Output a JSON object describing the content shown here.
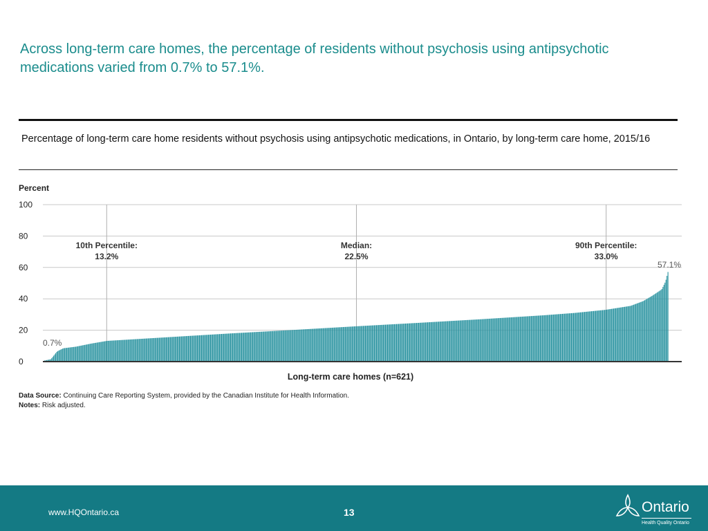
{
  "slide": {
    "title": "Across long-term care homes, the percentage of residents without psychosis using antipsychotic medications varied from 0.7% to 57.1%.",
    "chart_subtitle": "Percentage of long-term care home residents without psychosis using antipsychotic medications, in Ontario, by long-term care home, 2015/16"
  },
  "chart_data": {
    "type": "bar",
    "ylabel": "Percent",
    "xlabel": "Long-term care homes (n=621)",
    "ylim": [
      0,
      100
    ],
    "yticks": [
      0,
      20,
      40,
      60,
      80,
      100
    ],
    "grid": true,
    "n_homes": 621,
    "min_value": 0.7,
    "max_value": 57.1,
    "bar_color": "#2a93a0",
    "reference_lines": [
      {
        "label": "10th Percentile:",
        "value_label": "13.2%",
        "value": 13.2,
        "percentile": 10
      },
      {
        "label": "Median:",
        "value_label": "22.5%",
        "value": 22.5,
        "percentile": 50
      },
      {
        "label": "90th Percentile:",
        "value_label": "33.0%",
        "value": 33.0,
        "percentile": 90
      }
    ],
    "annotations": {
      "min_label": "0.7%",
      "max_label": "57.1%"
    },
    "distribution_points": [
      [
        0,
        0.7
      ],
      [
        1,
        1.5
      ],
      [
        1.5,
        4
      ],
      [
        2,
        6.5
      ],
      [
        3,
        8.5
      ],
      [
        5,
        9.5
      ],
      [
        7.5,
        11.5
      ],
      [
        10,
        13.2
      ],
      [
        20,
        15.6
      ],
      [
        30,
        18
      ],
      [
        40,
        20.2
      ],
      [
        50,
        22.5
      ],
      [
        60,
        24.7
      ],
      [
        70,
        27
      ],
      [
        80,
        29.5
      ],
      [
        85,
        31
      ],
      [
        90,
        33
      ],
      [
        94,
        35.5
      ],
      [
        96,
        38.5
      ],
      [
        97.5,
        42
      ],
      [
        99,
        46
      ],
      [
        99.6,
        51
      ],
      [
        100,
        57.1
      ]
    ]
  },
  "source": {
    "data_source_label": "Data Source:",
    "data_source_text": " Continuing Care Reporting System, provided by the Canadian Institute for Health Information.",
    "notes_label": "Notes:",
    "notes_text": " Risk adjusted."
  },
  "footer": {
    "url": "www.HQOntario.ca",
    "page_number": "13",
    "logo_word": "Ontario",
    "logo_sub": "Health Quality Ontario",
    "color": "#147a84"
  }
}
